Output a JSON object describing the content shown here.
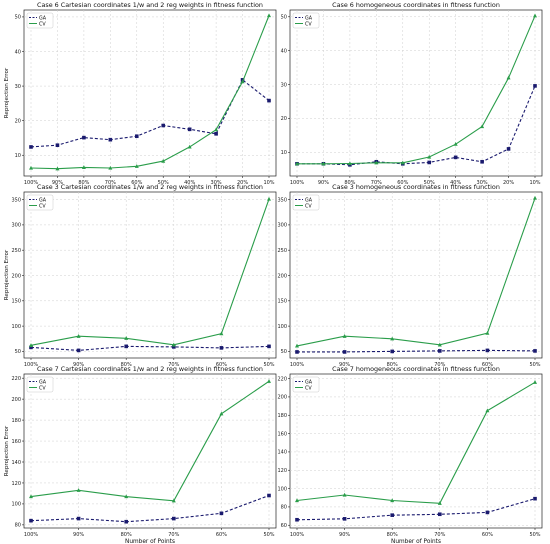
{
  "figure": {
    "row_label": "Reprojection Error",
    "col_label": "Number of Points"
  },
  "chart_data": [
    {
      "type": "line",
      "title": "Case 6 Cartesian coordinates 1/w and 2 reg weights in fitness function",
      "ylabel": "Reprojection Error",
      "xlabel": "",
      "categories": [
        "100%",
        "90%",
        "80%",
        "70%",
        "60%",
        "50%",
        "40%",
        "30%",
        "20%",
        "10%"
      ],
      "ylim": [
        4,
        52
      ],
      "yticks": [
        10,
        20,
        30,
        40,
        50
      ],
      "legend": "top-left",
      "grid": true,
      "series": [
        {
          "name": "GA",
          "color": "#1a1a6e",
          "dashed": true,
          "marker": "square",
          "values": [
            12.4,
            12.9,
            15.1,
            14.5,
            15.5,
            18.6,
            17.5,
            16.2,
            31.8,
            25.8
          ]
        },
        {
          "name": "CV",
          "color": "#2a9d4a",
          "dashed": false,
          "marker": "triangle",
          "values": [
            6.3,
            6.1,
            6.5,
            6.3,
            6.8,
            8.3,
            12.4,
            17.4,
            31.3,
            50.4
          ]
        }
      ]
    },
    {
      "type": "line",
      "title": "Case 6 homogeneous coordinates in fitness function",
      "ylabel": "",
      "xlabel": "",
      "categories": [
        "100%",
        "90%",
        "80%",
        "70%",
        "60%",
        "50%",
        "40%",
        "30%",
        "20%",
        "10%"
      ],
      "ylim": [
        3,
        52
      ],
      "yticks": [
        10,
        20,
        30,
        40,
        50
      ],
      "legend": "top-left",
      "grid": true,
      "series": [
        {
          "name": "GA",
          "color": "#1a1a6e",
          "dashed": true,
          "marker": "square",
          "values": [
            6.6,
            6.6,
            6.3,
            7.2,
            6.6,
            7.0,
            8.5,
            7.2,
            11.0,
            29.6
          ]
        },
        {
          "name": "CV",
          "color": "#2a9d4a",
          "dashed": false,
          "marker": "triangle",
          "values": [
            6.6,
            6.6,
            6.7,
            6.9,
            6.9,
            8.6,
            12.4,
            17.6,
            32.0,
            50.3
          ]
        }
      ]
    },
    {
      "type": "line",
      "title": "Case 3 Cartesian coordinates 1/w and 2 reg weights in fitness function",
      "ylabel": "Reprojection Error",
      "xlabel": "",
      "categories": [
        "100%",
        "90%",
        "80%",
        "70%",
        "60%",
        "50%"
      ],
      "ylim": [
        37,
        365
      ],
      "yticks": [
        50,
        100,
        150,
        200,
        250,
        300,
        350
      ],
      "legend": "top-left",
      "grid": true,
      "series": [
        {
          "name": "GA",
          "color": "#1a1a6e",
          "dashed": true,
          "marker": "square",
          "values": [
            58,
            52,
            60,
            59,
            57,
            60
          ]
        },
        {
          "name": "CV",
          "color": "#2a9d4a",
          "dashed": false,
          "marker": "triangle",
          "values": [
            62,
            80,
            76,
            63,
            85,
            351
          ]
        }
      ]
    },
    {
      "type": "line",
      "title": "Case 3 homogeneous coordinates in fitness function",
      "ylabel": "",
      "xlabel": "",
      "categories": [
        "100%",
        "90%",
        "80%",
        "70%",
        "60%",
        "50%"
      ],
      "ylim": [
        37,
        365
      ],
      "yticks": [
        50,
        100,
        150,
        200,
        250,
        300,
        350
      ],
      "legend": "top-left",
      "grid": true,
      "series": [
        {
          "name": "GA",
          "color": "#1a1a6e",
          "dashed": true,
          "marker": "square",
          "values": [
            49,
            49,
            50,
            51,
            52,
            51
          ]
        },
        {
          "name": "CV",
          "color": "#2a9d4a",
          "dashed": false,
          "marker": "triangle",
          "values": [
            61,
            80,
            75,
            63,
            86,
            353
          ]
        }
      ]
    },
    {
      "type": "line",
      "title": "Case 7 Cartesian coordinates 1/w and 2 reg weights in fitness function",
      "ylabel": "Reprojection Error",
      "xlabel": "Number of Points",
      "categories": [
        "100%",
        "90%",
        "80%",
        "70%",
        "60%",
        "50%"
      ],
      "ylim": [
        77,
        224
      ],
      "yticks": [
        80,
        100,
        120,
        140,
        160,
        180,
        200,
        220
      ],
      "legend": "top-left",
      "grid": true,
      "series": [
        {
          "name": "GA",
          "color": "#1a1a6e",
          "dashed": true,
          "marker": "square",
          "values": [
            84,
            86,
            83,
            86,
            91,
            108
          ]
        },
        {
          "name": "CV",
          "color": "#2a9d4a",
          "dashed": false,
          "marker": "triangle",
          "values": [
            107,
            113,
            107,
            103,
            186,
            217
          ]
        }
      ]
    },
    {
      "type": "line",
      "title": "Case 7 homogeneous coordinates in fitness function",
      "ylabel": "",
      "xlabel": "Number of Points",
      "categories": [
        "100%",
        "90%",
        "80%",
        "70%",
        "60%",
        "50%"
      ],
      "ylim": [
        57,
        225
      ],
      "yticks": [
        60,
        80,
        100,
        120,
        140,
        160,
        180,
        200,
        220
      ],
      "legend": "top-left",
      "grid": true,
      "series": [
        {
          "name": "GA",
          "color": "#1a1a6e",
          "dashed": true,
          "marker": "square",
          "values": [
            66,
            67,
            71,
            72,
            74,
            89
          ]
        },
        {
          "name": "CV",
          "color": "#2a9d4a",
          "dashed": false,
          "marker": "triangle",
          "values": [
            87,
            93,
            87,
            84,
            185,
            216
          ]
        }
      ]
    }
  ]
}
